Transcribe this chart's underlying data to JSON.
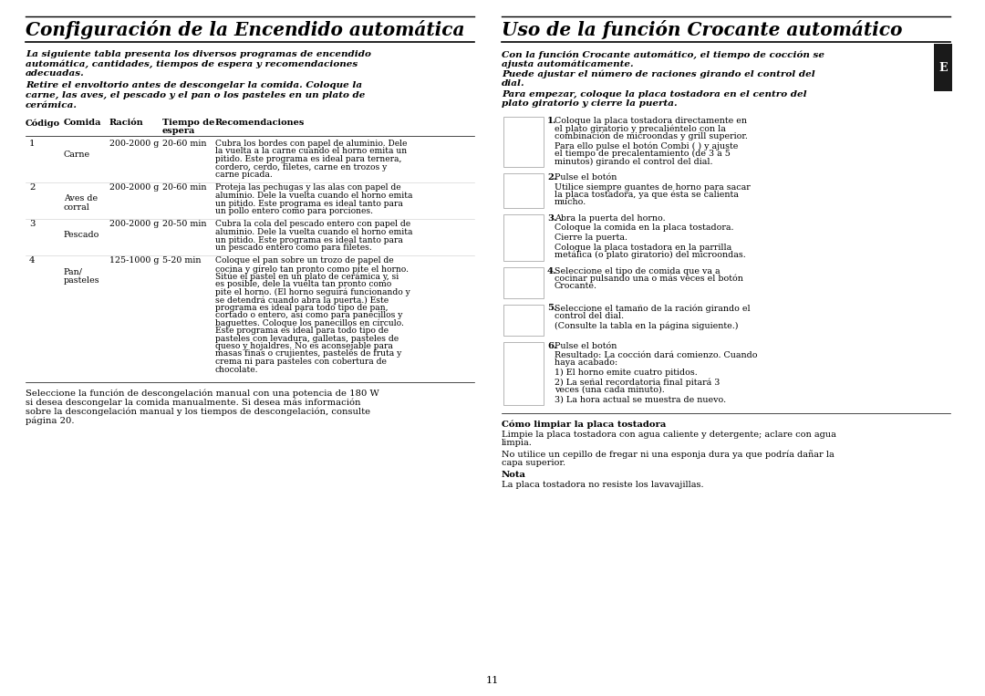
{
  "bg_color": "#ffffff",
  "left_title": "Configuración de la Encendido automática",
  "right_title": "Uso de la función Crocante automático",
  "left_intro1": "La siguiente tabla presenta los diversos programas de encendido automática, cantidades, tiempos de espera y recomendaciones adecuadas.",
  "left_intro2": "Retire el envoltorio antes de descongelar la comida. Coloque la carne, las aves, el pescado y el pan o los pasteles en un plato de cerámica.",
  "right_intro1": "Con la función Crocante automático, el tiempo de cocción se ajusta automáticamente.",
  "right_intro2": "Puede ajustar el número de raciones girando el control del dial.",
  "right_intro3": "Para empezar, coloque la placa tostadora en el centro del plato giratorio y cierre la puerta.",
  "table_rows": [
    {
      "code": "1",
      "food": "Carne",
      "amount": "200-2000 g",
      "time": "20-60 min",
      "rec": "Cubra los bordes con papel de aluminio. Dele la vuelta a la carne cuando el horno emita un pitido. Este programa es ideal para ternera, cordero, cerdo, filetes, carne en trozos y carne picada."
    },
    {
      "code": "2",
      "food": "Aves de\ncorral",
      "amount": "200-2000 g",
      "time": "20-60 min",
      "rec": "Proteja las pechugas y las alas con papel de aluminio. Dele la vuelta cuando el horno emita un pitido. Este programa es ideal tanto para un pollo entero como para porciones."
    },
    {
      "code": "3",
      "food": "Pescado",
      "amount": "200-2000 g",
      "time": "20-50 min",
      "rec": "Cubra la cola del pescado entero con papel de aluminio. Dele la vuelta cuando el horno emita un pitido. Este programa es ideal tanto para un pescado entero como para filetes."
    },
    {
      "code": "4",
      "food": "Pan/\npasteles",
      "amount": "125-1000 g",
      "time": "5-20 min",
      "rec": "Coloque el pan sobre un trozo de papel de cocina y gírelo tan pronto como pite el horno. Sitúe el pastel en un plato de cerámica y, si es posible, dele la vuelta tan pronto como pite el horno. (El horno seguirá funcionando y se detendrá cuando abra la puerta.) Este programa es ideal para todo tipo de pan, cortado o entero, así como para panecillos y baguettes. Coloque los panecillos en círculo. Este programa es ideal para todo tipo de pasteles con levadura, galletas, pasteles de queso y hojaldres. No es aconsejable para masas finas o crujientes, pasteles de fruta y crema ni para pasteles con cobertura de chocolate."
    }
  ],
  "left_footer": "Seleccione la función de descongelación manual con una potencia de 180 W si desea descongelar la comida manualmente. Si desea más información sobre la descongelación manual y los tiempos de descongelación, consulte página 20.",
  "right_steps": [
    {
      "num": "1.",
      "text": "Coloque la placa tostadora directamente en el plato giratorio y precaliéntelo con la combinación de microondas y grill superior.\nPara ello pulse el botón Combi ( ) y ajuste el tiempo de precalentamiento (de 3 a 5 minutos) girando el control del dial."
    },
    {
      "num": "2.",
      "text": "Pulse el botón\nUtilice siempre guantes de horno para sacar la placa tostadora, ya que ésta se calienta mucho."
    },
    {
      "num": "3.",
      "text": "Abra la puerta del horno.\nColoque la comida en la placa tostadora.\nCierre la puerta.\nColoque la placa tostadora en la parrilla metálica (o plato giratorio) del microondas."
    },
    {
      "num": "4.",
      "text": "Seleccione el tipo de comida que va a cocinar pulsando una o más veces el botón Crocante."
    },
    {
      "num": "5.",
      "text": "Seleccione el tamaño de la ración girando el control del dial.\n(Consulte la tabla en la página siguiente.)"
    },
    {
      "num": "6.",
      "text": "Pulse el botón\nResultado: La cocción dará comienzo. Cuando haya acabado:\n1)  El horno emite cuatro pitidos.\n2)  La señal recordatoria final pitará 3 veces (una cada minuto).\n3)  La hora actual se muestra de nuevo."
    }
  ],
  "right_footer_title": "Cómo limpiar la placa tostadora",
  "right_footer1": "Limpie la placa tostadora con agua caliente y detergente; aclare con agua limpia.",
  "right_footer2": "No utilice un cepillo de fregar ni una esponja dura ya que podría dañar la capa superior.",
  "right_footer_nota": "Nota",
  "right_footer3": "La placa tostadora no resiste los lavavajillas.",
  "page_num": "11",
  "e_label": "E",
  "e_bg": "#1a1a1a",
  "e_text_color": "#ffffff"
}
